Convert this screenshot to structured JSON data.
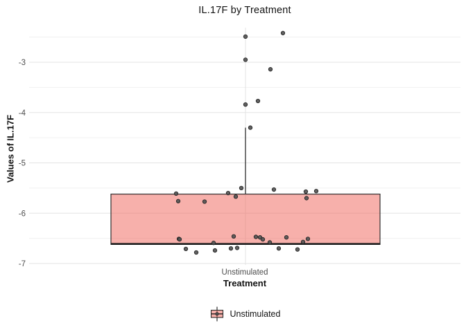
{
  "chart_data": {
    "type": "boxplot",
    "title": "IL.17F by Treatment",
    "xlabel": "Treatment",
    "ylabel": "Values of IL.17F",
    "categories": [
      "Unstimulated"
    ],
    "yticks": [
      -3,
      -4,
      -5,
      -6,
      -7
    ],
    "ylim": [
      -7.15,
      -2.3
    ],
    "grid": "major and minor horizontal, one vertical category line",
    "legend_position": "bottom",
    "series": [
      {
        "name": "Unstimulated",
        "box": {
          "q1": -6.62,
          "median": -6.61,
          "q3": -5.62,
          "whisker_low": -6.62,
          "whisker_high": -4.3
        },
        "jitter_points": [
          [
            54,
            -2.42
          ],
          [
            0,
            -2.49
          ],
          [
            0,
            -2.95
          ],
          [
            36,
            -3.14
          ],
          [
            18,
            -3.77
          ],
          [
            0,
            -3.84
          ],
          [
            7,
            -4.3
          ],
          [
            -6,
            -5.5
          ],
          [
            41,
            -5.53
          ],
          [
            102,
            -5.56
          ],
          [
            87,
            -5.57
          ],
          [
            -25,
            -5.6
          ],
          [
            -100,
            -5.61
          ],
          [
            -14,
            -5.67
          ],
          [
            88,
            -5.7
          ],
          [
            -97,
            -5.76
          ],
          [
            -59,
            -5.77
          ],
          [
            -17,
            -6.46
          ],
          [
            15,
            -6.47
          ],
          [
            21,
            -6.48
          ],
          [
            59,
            -6.48
          ],
          [
            -96,
            -6.51
          ],
          [
            -95,
            -6.52
          ],
          [
            90,
            -6.51
          ],
          [
            25,
            -6.52
          ],
          [
            83,
            -6.57
          ],
          [
            35,
            -6.58
          ],
          [
            -46,
            -6.59
          ],
          [
            -12,
            -6.69
          ],
          [
            -21,
            -6.7
          ],
          [
            48,
            -6.7
          ],
          [
            -86,
            -6.71
          ],
          [
            75,
            -6.72
          ],
          [
            -44,
            -6.74
          ],
          [
            -71,
            -6.78
          ]
        ]
      }
    ]
  },
  "legend": {
    "label": "Unstimulated"
  },
  "colors": {
    "box_fill_rgba": "rgba(240,104,94,0.52)",
    "box_border": "#2d2d2d",
    "median": "#1c1c1c",
    "point_fill": "#525252",
    "point_stroke": "#262626",
    "grid_major": "#e3e3e3",
    "grid_minor": "#f0f0f0",
    "axis_text": "#4d4d4d",
    "text": "#111111"
  }
}
